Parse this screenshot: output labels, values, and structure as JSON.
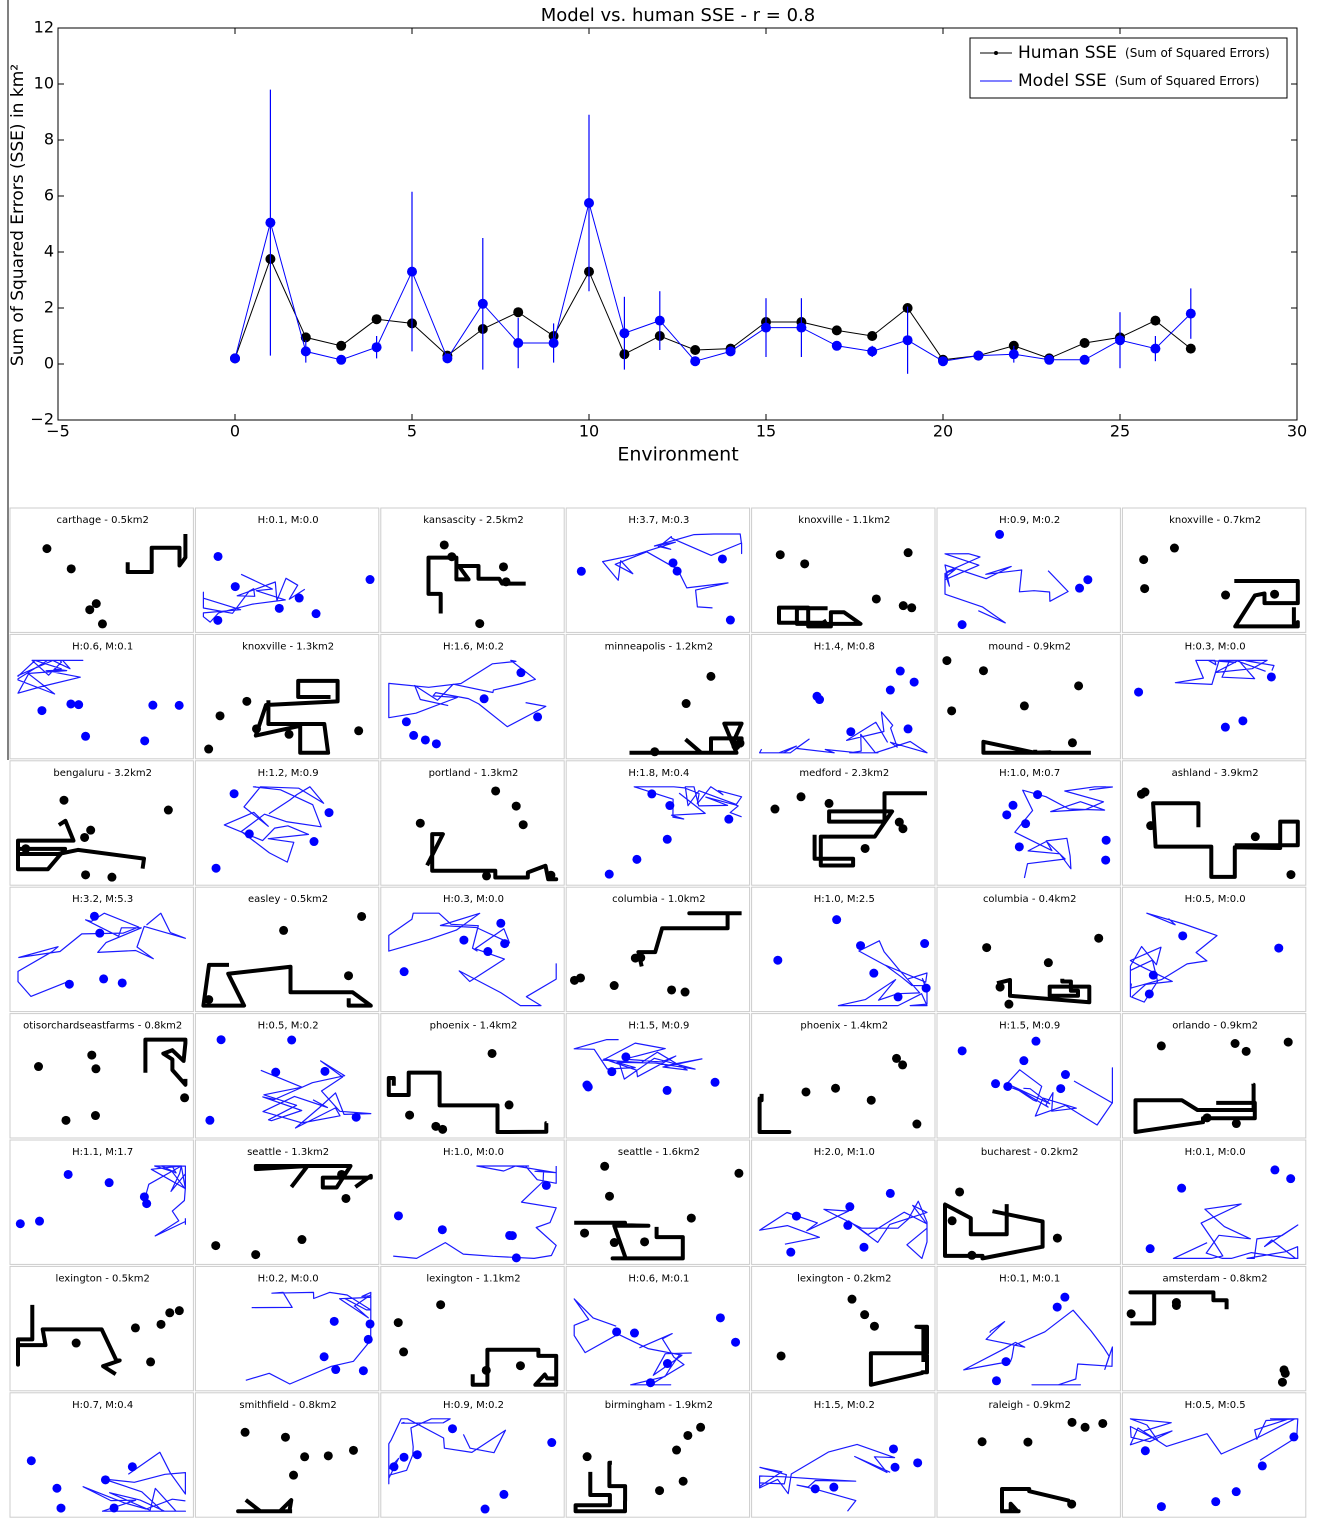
{
  "chart_data": {
    "type": "line",
    "title": "Model vs. human SSE - r = 0.8",
    "x_label": "Environment",
    "y_label": "Sum of Squared Errors (SSE) in km²",
    "x": [
      0,
      1,
      2,
      3,
      4,
      5,
      6,
      7,
      8,
      9,
      10,
      11,
      12,
      13,
      14,
      15,
      16,
      17,
      18,
      19,
      20,
      21,
      22,
      23,
      24,
      25,
      26,
      27
    ],
    "series": [
      {
        "name": "Human SSE",
        "note": "(Sum of Squared Errors)",
        "color": "#000000",
        "values": [
          0.2,
          3.75,
          0.95,
          0.65,
          1.6,
          1.45,
          0.3,
          1.25,
          1.85,
          1.0,
          3.3,
          0.35,
          1.0,
          0.5,
          0.55,
          1.5,
          1.5,
          1.2,
          1.0,
          2.0,
          0.15,
          0.3,
          0.65,
          0.2,
          0.75,
          0.95,
          1.55,
          0.55
        ]
      },
      {
        "name": "Model SSE",
        "note": "(Sum of Squared Errors)",
        "color": "#0000ff",
        "values": [
          0.2,
          5.05,
          0.45,
          0.15,
          0.6,
          3.3,
          0.2,
          2.15,
          0.75,
          0.75,
          5.75,
          1.1,
          1.55,
          0.1,
          0.45,
          1.3,
          1.3,
          0.65,
          0.45,
          0.85,
          0.1,
          0.3,
          0.35,
          0.15,
          0.15,
          0.85,
          0.55,
          1.8
        ],
        "errors": [
          0,
          4.75,
          0.4,
          0,
          0.4,
          2.85,
          0,
          2.35,
          0.9,
          0.7,
          3.15,
          1.3,
          1.05,
          0,
          0.15,
          1.05,
          1.05,
          0,
          0.2,
          1.2,
          0,
          0.1,
          0.3,
          0,
          0,
          1.0,
          0.45,
          0.9
        ]
      }
    ],
    "xlim": [
      -5,
      30
    ],
    "xticks": [
      {
        "value": -5,
        "label": "−5"
      },
      0,
      5,
      10,
      15,
      20,
      25,
      30
    ],
    "ylim": [
      -2,
      12
    ],
    "yticks": [
      {
        "value": -2,
        "label": "−2"
      },
      0,
      2,
      4,
      6,
      8,
      10,
      12
    ],
    "legend": "upper right"
  },
  "panels": [
    "carthage - 0.5km2",
    "H:0.1, M:0.0",
    "kansascity - 2.5km2",
    "H:3.7, M:0.3",
    "knoxville - 1.1km2",
    "H:0.9, M:0.2",
    "knoxville - 0.7km2",
    "H:0.6, M:0.1",
    "knoxville - 1.3km2",
    "H:1.6, M:0.2",
    "minneapolis - 1.2km2",
    "H:1.4, M:0.8",
    "mound - 0.9km2",
    "H:0.3, M:0.0",
    "bengaluru - 3.2km2",
    "H:1.2, M:0.9",
    "portland - 1.3km2",
    "H:1.8, M:0.4",
    "medford - 2.3km2",
    "H:1.0, M:0.7",
    "ashland - 3.9km2",
    "H:3.2, M:5.3",
    "easley - 0.5km2",
    "H:0.3, M:0.0",
    "columbia - 1.0km2",
    "H:1.0, M:2.5",
    "columbia - 0.4km2",
    "H:0.5, M:0.0",
    "otisorchardseastfarms - 0.8km2",
    "H:0.5, M:0.2",
    "phoenix - 1.4km2",
    "H:1.5, M:0.9",
    "phoenix - 1.4km2",
    "H:1.5, M:0.9",
    "orlando - 0.9km2",
    "H:1.1, M:1.7",
    "seattle - 1.3km2",
    "H:1.0, M:0.0",
    "seattle - 1.6km2",
    "H:2.0, M:1.0",
    "bucharest - 0.2km2",
    "H:0.1, M:0.0",
    "lexington - 0.5km2",
    "H:0.2, M:0.0",
    "lexington - 1.1km2",
    "H:0.6, M:0.1",
    "lexington - 0.2km2",
    "H:0.1, M:0.1",
    "amsterdam - 0.8km2",
    "H:0.7, M:0.4",
    "smithfield - 0.8km2",
    "H:0.9, M:0.2",
    "birmingham - 1.9km2",
    "H:1.5, M:0.2",
    "raleigh - 0.9km2",
    "H:0.5, M:0.5"
  ]
}
